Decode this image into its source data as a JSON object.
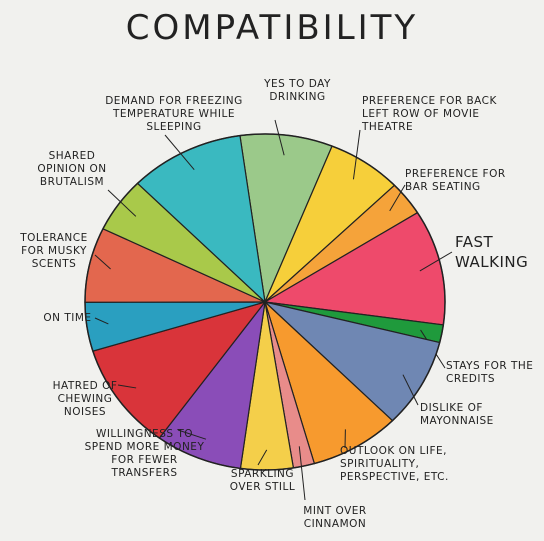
{
  "chart_data": {
    "type": "pie",
    "title": "COMPATIBILITY",
    "categories": [
      "YES TO DAY DRINKING",
      "PREFERENCE FOR BACK LEFT ROW OF MOVIE THEATRE",
      "PREFERENCE FOR BAR SEATING",
      "FAST WALKING",
      "STAYS FOR THE CREDITS",
      "DISLIKE OF MAYONNAISE",
      "OUTLOOK ON LIFE, SPIRITUALITY, PERSPECTIVE, ETC.",
      "MINT OVER CINNAMON",
      "SPARKLING OVER STILL",
      "WILLINGNESS TO SPEND MORE MONEY FOR FEWER TRANSFERS",
      "HATRED OF CHEWING NOISES",
      "ON TIME",
      "TOLERANCE FOR MUSKY SCENTS",
      "SHARED OPINION ON BRUTALISM",
      "DEMAND FOR FREEZING TEMPERATURE WHILE SLEEPING"
    ],
    "values": [
      8.3,
      6.7,
      3.3,
      11.1,
      1.7,
      8.6,
      8.1,
      1.9,
      4.7,
      7.8,
      10.3,
      4.7,
      7.2,
      5.3,
      10.3
    ],
    "colors": [
      "#9bc98a",
      "#f6cf3a",
      "#f5a33a",
      "#ee4a6b",
      "#1f9a3c",
      "#6f87b3",
      "#f79a2e",
      "#e88c8a",
      "#f4cf4a",
      "#8a4db8",
      "#d9343a",
      "#2a9fc0",
      "#e3674e",
      "#a9c94a",
      "#3ab9c0"
    ]
  }
}
